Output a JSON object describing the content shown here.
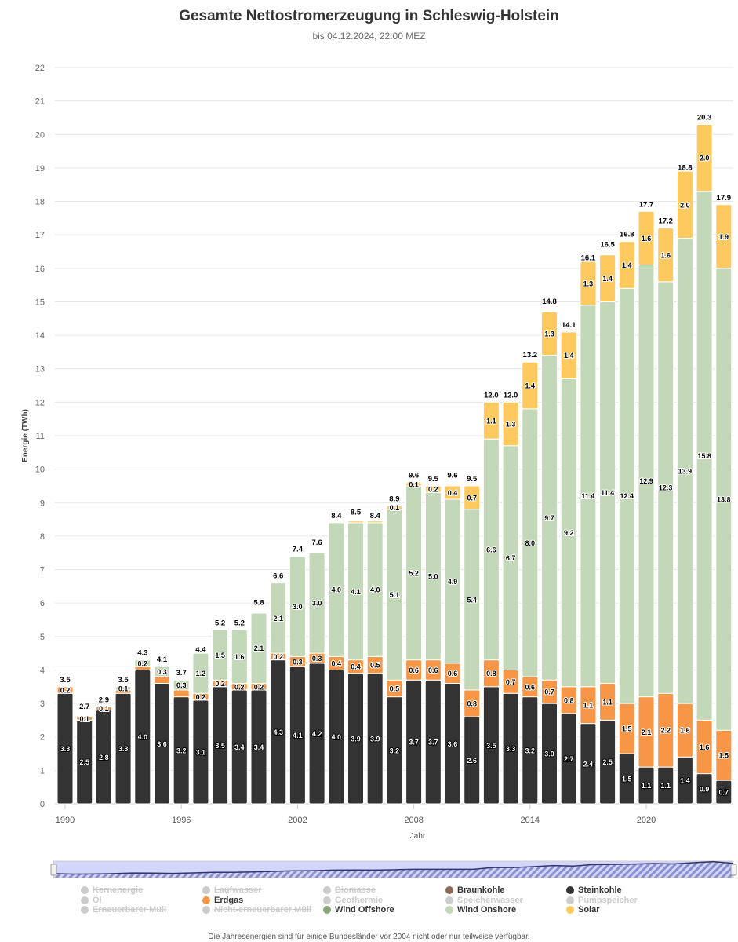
{
  "chart_data": {
    "type": "bar",
    "stacked": true,
    "title": "Gesamte Nettostromerzeugung in Schleswig-Holstein",
    "subtitle": "bis 04.12.2024, 22:00 MEZ",
    "xlabel": "Jahr",
    "ylabel": "Energie (TWh)",
    "ylim": [
      0,
      22
    ],
    "yticks": [
      0,
      1,
      2,
      3,
      4,
      5,
      6,
      7,
      8,
      9,
      10,
      11,
      12,
      13,
      14,
      15,
      16,
      17,
      18,
      19,
      20,
      21,
      22
    ],
    "xticks": [
      "1990",
      "1996",
      "2002",
      "2008",
      "2014",
      "2020"
    ],
    "grid": true,
    "legend_position": "bottom",
    "categories": [
      1990,
      1991,
      1992,
      1993,
      1994,
      1995,
      1996,
      1997,
      1998,
      1999,
      2000,
      2001,
      2002,
      2003,
      2004,
      2005,
      2006,
      2007,
      2008,
      2009,
      2010,
      2011,
      2012,
      2013,
      2014,
      2015,
      2016,
      2017,
      2018,
      2019,
      2020,
      2021,
      2022,
      2023,
      2024
    ],
    "series": [
      {
        "name": "Steinkohle",
        "color": "#333333",
        "values": [
          3.3,
          2.5,
          2.8,
          3.3,
          4.0,
          3.6,
          3.2,
          3.1,
          3.5,
          3.4,
          3.4,
          4.3,
          4.1,
          4.2,
          4.0,
          3.9,
          3.9,
          3.2,
          3.7,
          3.7,
          3.6,
          2.6,
          3.5,
          3.3,
          3.2,
          3.0,
          2.7,
          2.4,
          2.5,
          1.5,
          1.1,
          1.1,
          1.4,
          0.9,
          0.7
        ]
      },
      {
        "name": "Erdgas",
        "color": "#f79646",
        "values": [
          0.2,
          0.1,
          0.1,
          0.1,
          0.1,
          0.2,
          0.2,
          0.2,
          0.2,
          0.2,
          0.2,
          0.2,
          0.3,
          0.3,
          0.4,
          0.4,
          0.5,
          0.5,
          0.6,
          0.6,
          0.6,
          0.8,
          0.8,
          0.7,
          0.6,
          0.7,
          0.8,
          1.1,
          1.1,
          1.5,
          2.1,
          2.2,
          1.6,
          1.6,
          1.5
        ]
      },
      {
        "name": "Wind Onshore",
        "color": "#c2d8b8",
        "values": [
          0,
          0,
          0,
          0.1,
          0.2,
          0.3,
          0.3,
          1.2,
          1.5,
          1.6,
          2.1,
          2.1,
          3.0,
          3.0,
          4.0,
          4.1,
          4.0,
          5.1,
          5.2,
          5.0,
          4.9,
          5.4,
          6.6,
          6.7,
          8.0,
          9.7,
          9.2,
          11.4,
          11.4,
          12.4,
          12.9,
          12.3,
          13.9,
          15.8,
          13.8
        ]
      },
      {
        "name": "Solar",
        "color": "#fec95f",
        "values": [
          0,
          0,
          0,
          0,
          0,
          0,
          0,
          0,
          0,
          0,
          0,
          0,
          0,
          0,
          0,
          0.05,
          0.05,
          0.1,
          0.1,
          0.2,
          0.4,
          0.7,
          1.1,
          1.3,
          1.4,
          1.3,
          1.4,
          1.3,
          1.4,
          1.4,
          1.6,
          1.6,
          2.0,
          2.0,
          1.9
        ]
      }
    ],
    "totals": [
      3.5,
      2.7,
      2.9,
      3.5,
      4.3,
      4.1,
      3.7,
      4.4,
      5.2,
      5.2,
      5.8,
      6.6,
      7.4,
      7.6,
      8.4,
      8.5,
      8.4,
      8.9,
      9.6,
      9.5,
      9.6,
      9.5,
      12.0,
      12.0,
      13.2,
      14.8,
      14.1,
      16.1,
      16.5,
      16.8,
      17.7,
      17.2,
      18.8,
      20.3,
      17.9
    ]
  },
  "legend": [
    {
      "name": "Kernenergie",
      "color": "#cccccc",
      "active": false
    },
    {
      "name": "Laufwasser",
      "color": "#cccccc",
      "active": false
    },
    {
      "name": "Biomasse",
      "color": "#cccccc",
      "active": false
    },
    {
      "name": "Braunkohle",
      "color": "#8b6a53",
      "active": true
    },
    {
      "name": "Steinkohle",
      "color": "#333333",
      "active": true
    },
    {
      "name": "Öl",
      "color": "#cccccc",
      "active": false
    },
    {
      "name": "Erdgas",
      "color": "#f79646",
      "active": true
    },
    {
      "name": "Geothermie",
      "color": "#cccccc",
      "active": false
    },
    {
      "name": "Speicherwasser",
      "color": "#cccccc",
      "active": false
    },
    {
      "name": "Pumpspeicher",
      "color": "#cccccc",
      "active": false
    },
    {
      "name": "Erneuerbarer Müll",
      "color": "#cccccc",
      "active": false
    },
    {
      "name": "Nicht-erneuerbarer Müll",
      "color": "#cccccc",
      "active": false
    },
    {
      "name": "Wind Offshore",
      "color": "#87a77b",
      "active": true
    },
    {
      "name": "Wind Onshore",
      "color": "#c2d8b8",
      "active": true
    },
    {
      "name": "Solar",
      "color": "#fec95f",
      "active": true
    }
  ],
  "footnote": "Die Jahresenergien sind für einige Bundesländer vor 2004 nicht oder nur teilweise verfügbar."
}
